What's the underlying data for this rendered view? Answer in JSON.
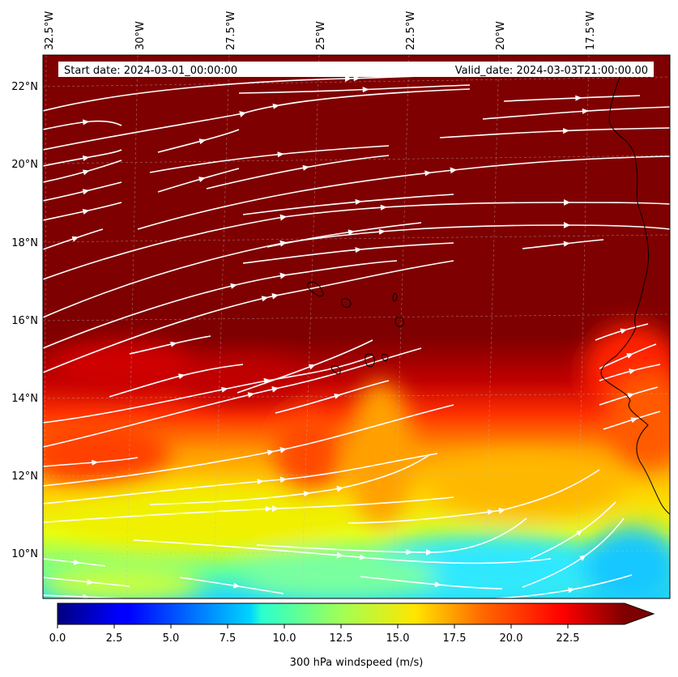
{
  "header": {
    "start_date": "Start date: 2024-03-01_00:00:00",
    "valid_date": "Valid_date: 2024-03-03T21:00:00.00"
  },
  "map": {
    "top_lon_labels": [
      "32.5°W",
      "30°W",
      "27.5°W",
      "25°W",
      "22.5°W",
      "20°W",
      "17.5°W"
    ],
    "lat_labels": [
      "22°N",
      "20°N",
      "18°N",
      "16°N",
      "14°N",
      "12°N",
      "10°N"
    ],
    "lon_range": [
      -33,
      -15.5
    ],
    "lat_range": [
      8.9,
      22.8
    ],
    "field": "300 hPa windspeed",
    "overlay": "streamlines",
    "colormap": "jet"
  },
  "colorbar": {
    "label": "300 hPa windspeed (m/s)",
    "ticks": [
      "0.0",
      "2.5",
      "5.0",
      "7.5",
      "10.0",
      "12.5",
      "15.0",
      "17.5",
      "20.0",
      "22.5"
    ],
    "min": 0,
    "max": 25,
    "extend": "max"
  },
  "colors": {
    "background": "#7f0000",
    "streamline": "#ffffff",
    "coastline": "#000000"
  }
}
